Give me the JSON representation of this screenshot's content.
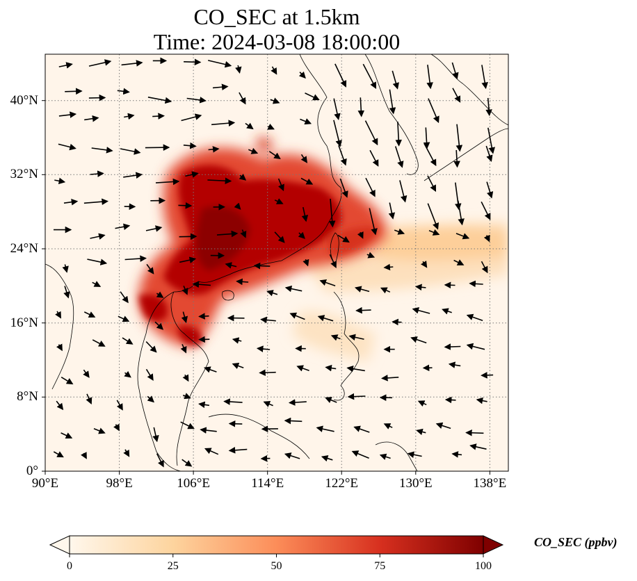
{
  "title_line1": "CO_SEC at 1.5km",
  "title_line2": "Time: 2024-03-08 18:00:00",
  "map": {
    "region": "East Asia / Southeast Asia",
    "lon_range": [
      90,
      140
    ],
    "lat_range": [
      0,
      45
    ],
    "lat_ticks": [
      {
        "value": 40,
        "label": "40°N"
      },
      {
        "value": 32,
        "label": "32°N"
      },
      {
        "value": 24,
        "label": "24°N"
      },
      {
        "value": 16,
        "label": "16°N"
      },
      {
        "value": 8,
        "label": "8°N"
      },
      {
        "value": 0,
        "label": "0°"
      }
    ],
    "lon_ticks": [
      {
        "value": 90,
        "label": "90°E"
      },
      {
        "value": 98,
        "label": "98°E"
      },
      {
        "value": 106,
        "label": "106°E"
      },
      {
        "value": 114,
        "label": "114°E"
      },
      {
        "value": 122,
        "label": "122°E"
      },
      {
        "value": 130,
        "label": "130°E"
      },
      {
        "value": 138,
        "label": "138°E"
      }
    ],
    "gridlines": "dotted",
    "field": "CO_SEC concentration shaded, wind vectors overlaid",
    "plume_core": "South China, northern Vietnam/Laos, Taiwan; outflow eastward over Pacific near 20-26°N"
  },
  "colorbar": {
    "label": "CO_SEC (ppbv)",
    "min": 0,
    "max": 100,
    "ticks": [
      "0",
      "25",
      "50",
      "75",
      "100"
    ],
    "colors": [
      "#fff7ec",
      "#fdd49e",
      "#fc8d59",
      "#d7301f",
      "#7f0000"
    ],
    "extend": "both"
  }
}
